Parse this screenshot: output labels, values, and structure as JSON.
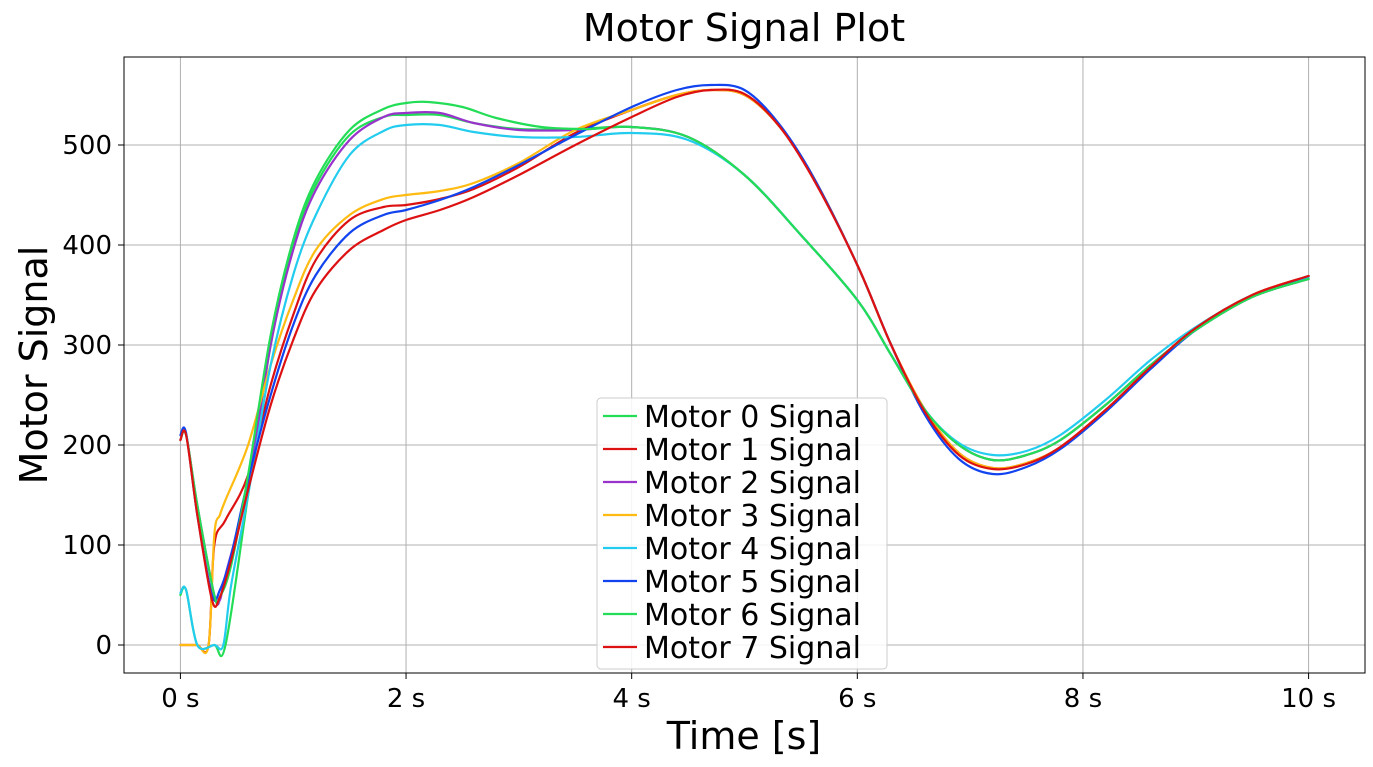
{
  "chart_data": {
    "type": "line",
    "title": "Motor Signal Plot",
    "xlabel": "Time [s]",
    "ylabel": "Motor Signal",
    "xlim": [
      -0.5,
      10.5
    ],
    "ylim": [
      -28,
      588
    ],
    "xticks": [
      {
        "value": 0,
        "label": "0 s"
      },
      {
        "value": 2,
        "label": "2 s"
      },
      {
        "value": 4,
        "label": "4 s"
      },
      {
        "value": 6,
        "label": "6 s"
      },
      {
        "value": 8,
        "label": "8 s"
      },
      {
        "value": 10,
        "label": "10 s"
      }
    ],
    "yticks": [
      {
        "value": 0,
        "label": "0"
      },
      {
        "value": 100,
        "label": "100"
      },
      {
        "value": 200,
        "label": "200"
      },
      {
        "value": 300,
        "label": "300"
      },
      {
        "value": 400,
        "label": "400"
      },
      {
        "value": 500,
        "label": "500"
      }
    ],
    "grid": true,
    "legend_position": "bottom-center",
    "series": [
      {
        "name": "Motor 0 Signal",
        "color": "#22dd55",
        "x": [
          0,
          0.05,
          0.15,
          0.3,
          0.4,
          0.6,
          0.8,
          1.0,
          1.2,
          1.5,
          1.8,
          2.0,
          2.3,
          2.6,
          3.0,
          3.5,
          4.0,
          4.5,
          5.0,
          5.5,
          6.0,
          6.3,
          6.6,
          6.9,
          7.2,
          7.5,
          7.8,
          8.2,
          8.6,
          9.0,
          9.5,
          10.0
        ],
        "y": [
          50,
          55,
          0,
          0,
          0,
          150,
          300,
          400,
          460,
          510,
          528,
          530,
          530,
          522,
          516,
          516,
          518,
          508,
          470,
          410,
          345,
          290,
          235,
          200,
          185,
          190,
          205,
          240,
          280,
          315,
          348,
          366
        ]
      },
      {
        "name": "Motor 1 Signal",
        "color": "#dd1111",
        "x": [
          0,
          0.05,
          0.15,
          0.25,
          0.3,
          0.4,
          0.6,
          0.8,
          1.0,
          1.2,
          1.5,
          1.8,
          2.0,
          2.3,
          2.6,
          3.0,
          3.5,
          4.0,
          4.4,
          4.7,
          5.0,
          5.3,
          5.6,
          6.0,
          6.3,
          6.6,
          6.9,
          7.2,
          7.5,
          7.8,
          8.2,
          8.6,
          9.0,
          9.5,
          10.0
        ],
        "y": [
          0,
          0,
          0,
          0,
          100,
          125,
          170,
          260,
          330,
          385,
          425,
          438,
          440,
          446,
          456,
          478,
          512,
          535,
          550,
          555,
          550,
          520,
          470,
          380,
          300,
          235,
          192,
          177,
          182,
          198,
          235,
          278,
          317,
          350,
          369
        ]
      },
      {
        "name": "Motor 2 Signal",
        "color": "#9933cc",
        "x": [
          0,
          0.05,
          0.15,
          0.3,
          0.35,
          0.4,
          0.6,
          0.8,
          1.0,
          1.2,
          1.5,
          1.8,
          2.0,
          2.3,
          2.6,
          3.0,
          3.5,
          4.0,
          4.5,
          5.0,
          5.5,
          6.0,
          6.3,
          6.6,
          6.9,
          7.2,
          7.5,
          7.8,
          8.2,
          8.6,
          9.0,
          9.5,
          10.0
        ],
        "y": [
          205,
          210,
          140,
          50,
          45,
          70,
          160,
          300,
          395,
          455,
          505,
          528,
          532,
          532,
          522,
          515,
          515,
          518,
          508,
          470,
          410,
          345,
          290,
          235,
          200,
          185,
          190,
          205,
          240,
          280,
          315,
          348,
          366
        ]
      },
      {
        "name": "Motor 3 Signal",
        "color": "#ffbb11",
        "x": [
          0,
          0.05,
          0.15,
          0.25,
          0.3,
          0.35,
          0.4,
          0.6,
          0.8,
          1.0,
          1.2,
          1.5,
          1.8,
          2.0,
          2.3,
          2.6,
          3.0,
          3.5,
          4.0,
          4.4,
          4.7,
          5.0,
          5.3,
          5.6,
          6.0,
          6.3,
          6.6,
          6.9,
          7.2,
          7.5,
          7.8,
          8.2,
          8.6,
          9.0,
          9.5,
          10.0
        ],
        "y": [
          0,
          0,
          0,
          0,
          110,
          130,
          145,
          200,
          280,
          345,
          395,
          430,
          446,
          450,
          454,
          462,
          482,
          515,
          535,
          550,
          555,
          550,
          520,
          470,
          380,
          300,
          235,
          192,
          177,
          182,
          198,
          235,
          278,
          317,
          350,
          369
        ]
      },
      {
        "name": "Motor 4 Signal",
        "color": "#22ccee",
        "x": [
          0,
          0.05,
          0.15,
          0.3,
          0.38,
          0.45,
          0.6,
          0.8,
          1.0,
          1.2,
          1.5,
          1.8,
          2.0,
          2.3,
          2.6,
          3.0,
          3.5,
          4.0,
          4.5,
          5.0,
          5.5,
          6.0,
          6.3,
          6.6,
          6.9,
          7.2,
          7.5,
          7.8,
          8.2,
          8.6,
          9.0,
          9.5,
          10.0
        ],
        "y": [
          52,
          55,
          0,
          0,
          0,
          60,
          150,
          280,
          370,
          430,
          490,
          514,
          520,
          520,
          513,
          508,
          508,
          512,
          505,
          470,
          410,
          345,
          290,
          235,
          202,
          190,
          194,
          210,
          245,
          285,
          318,
          350,
          368
        ]
      },
      {
        "name": "Motor 5 Signal",
        "color": "#1144ee",
        "x": [
          0,
          0.05,
          0.15,
          0.28,
          0.35,
          0.45,
          0.6,
          0.8,
          1.0,
          1.2,
          1.5,
          1.8,
          2.0,
          2.3,
          2.6,
          3.0,
          3.5,
          4.0,
          4.4,
          4.7,
          5.0,
          5.3,
          5.6,
          6.0,
          6.3,
          6.6,
          6.9,
          7.2,
          7.5,
          7.8,
          8.2,
          8.6,
          9.0,
          9.5,
          10.0
        ],
        "y": [
          210,
          212,
          130,
          50,
          55,
          90,
          165,
          250,
          320,
          370,
          412,
          430,
          435,
          445,
          458,
          480,
          510,
          538,
          555,
          560,
          555,
          522,
          470,
          380,
          300,
          230,
          186,
          171,
          178,
          196,
          233,
          276,
          315,
          349,
          369
        ]
      },
      {
        "name": "Motor 6 Signal",
        "color": "#22dd55",
        "x": [
          0,
          0.05,
          0.15,
          0.3,
          0.35,
          0.45,
          0.6,
          0.8,
          1.0,
          1.2,
          1.5,
          1.8,
          2.0,
          2.2,
          2.5,
          2.8,
          3.2,
          3.6,
          4.0,
          4.5,
          5.0,
          5.5,
          6.0,
          6.3,
          6.6,
          6.9,
          7.2,
          7.5,
          7.8,
          8.2,
          8.6,
          9.0,
          9.5,
          10.0
        ],
        "y": [
          205,
          210,
          140,
          50,
          48,
          80,
          170,
          310,
          405,
          465,
          515,
          536,
          542,
          543,
          538,
          527,
          518,
          516,
          518,
          508,
          470,
          410,
          345,
          290,
          235,
          200,
          185,
          190,
          205,
          240,
          280,
          315,
          348,
          366
        ]
      },
      {
        "name": "Motor 7 Signal",
        "color": "#dd1111",
        "x": [
          0,
          0.05,
          0.15,
          0.28,
          0.35,
          0.45,
          0.6,
          0.8,
          1.0,
          1.2,
          1.5,
          1.8,
          2.0,
          2.3,
          2.6,
          3.0,
          3.5,
          4.0,
          4.4,
          4.7,
          5.0,
          5.3,
          5.6,
          6.0,
          6.3,
          6.6,
          6.9,
          7.2,
          7.5,
          7.8,
          8.2,
          8.6,
          9.0,
          9.5,
          10.0
        ],
        "y": [
          205,
          210,
          130,
          45,
          48,
          85,
          155,
          240,
          305,
          355,
          395,
          415,
          425,
          435,
          448,
          470,
          500,
          528,
          548,
          555,
          551,
          520,
          468,
          380,
          300,
          233,
          190,
          176,
          181,
          198,
          235,
          278,
          317,
          350,
          369
        ]
      }
    ]
  }
}
